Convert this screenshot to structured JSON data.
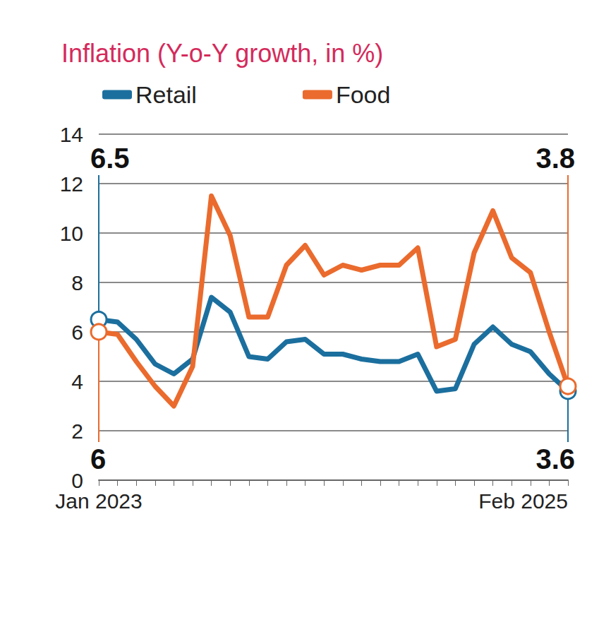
{
  "chart_data": {
    "type": "line",
    "title": "Inflation (Y-o-Y growth, in %)",
    "categories": [
      "Jan 2023",
      null,
      null,
      null,
      null,
      null,
      null,
      null,
      null,
      null,
      null,
      null,
      null,
      null,
      null,
      null,
      null,
      null,
      null,
      null,
      null,
      null,
      null,
      null,
      null,
      "Feb 2025"
    ],
    "series": [
      {
        "name": "Retail",
        "color": "#1b6f9e",
        "values": [
          6.5,
          6.4,
          5.7,
          4.7,
          4.3,
          4.9,
          7.4,
          6.8,
          5.0,
          4.9,
          5.6,
          5.7,
          5.1,
          5.1,
          4.9,
          4.8,
          4.8,
          5.1,
          3.6,
          3.7,
          5.5,
          6.2,
          5.5,
          5.2,
          4.3,
          3.6
        ],
        "value_labels": [
          "6.5",
          null,
          null,
          null,
          null,
          null,
          null,
          null,
          null,
          null,
          null,
          null,
          null,
          null,
          null,
          null,
          null,
          null,
          null,
          null,
          null,
          null,
          null,
          null,
          null,
          "3.6"
        ]
      },
      {
        "name": "Food",
        "color": "#ea6b2d",
        "values": [
          6,
          5.9,
          4.8,
          3.8,
          3.0,
          4.6,
          11.5,
          9.9,
          6.6,
          6.6,
          8.7,
          9.5,
          8.3,
          8.7,
          8.5,
          8.7,
          8.7,
          9.4,
          5.4,
          5.7,
          9.2,
          10.9,
          9.0,
          8.4,
          6.0,
          3.8
        ],
        "value_labels": [
          "6",
          null,
          null,
          null,
          null,
          null,
          null,
          null,
          null,
          null,
          null,
          null,
          null,
          null,
          null,
          null,
          null,
          null,
          null,
          null,
          null,
          null,
          null,
          null,
          null,
          "3.8"
        ]
      }
    ],
    "ylim": [
      0,
      14
    ],
    "yticks": [
      0,
      2,
      4,
      6,
      8,
      10,
      12,
      14
    ],
    "grid": true,
    "legend": "top-left"
  }
}
